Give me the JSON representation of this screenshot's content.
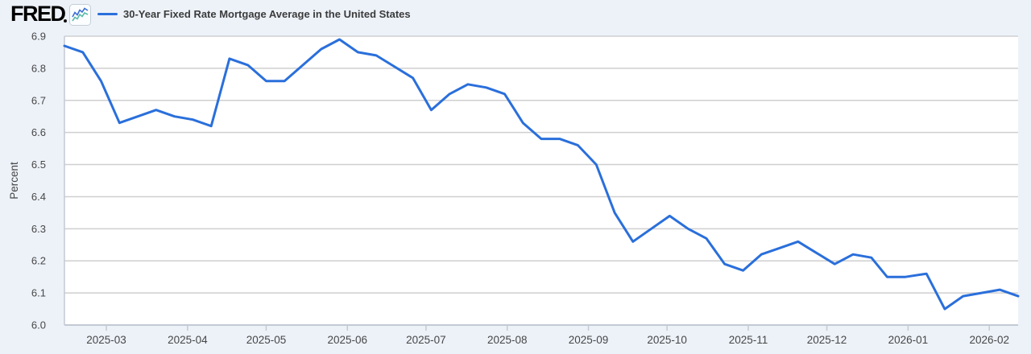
{
  "header": {
    "logo_text": "FRED",
    "title": "30-Year Fixed Rate Mortgage Average in the United States"
  },
  "colors": {
    "background": "#edf2f9",
    "plot_background": "#ffffff",
    "series_line": "#2a6fdb",
    "gridline": "#cfcfcf",
    "axis_line": "#c3cad3",
    "tick_label": "#474747",
    "title_text": "#3b3b3b",
    "icon_teal": "#5ab9a8",
    "icon_blue": "#3b6fd4"
  },
  "y_axis": {
    "title": "Percent",
    "tick_labels": [
      "6.9",
      "6.8",
      "6.7",
      "6.6",
      "6.5",
      "6.4",
      "6.3",
      "6.2",
      "6.1",
      "6.0"
    ],
    "min": 6.0,
    "max": 6.9
  },
  "x_axis": {
    "tick_labels": [
      "2025-03",
      "2025-04",
      "2025-05",
      "2025-06",
      "2025-07",
      "2025-08",
      "2025-09",
      "2025-10",
      "2025-11",
      "2025-12",
      "2026-01",
      "2026-02"
    ]
  },
  "chart_data": {
    "type": "line",
    "title": "30-Year Fixed Rate Mortgage Average in the United States",
    "ylabel": "Percent",
    "ylim": [
      6.0,
      6.9
    ],
    "grid": true,
    "legend_position": "top-left",
    "frequency": "weekly",
    "series": [
      {
        "name": "30-Year Fixed Rate Mortgage Average in the United States",
        "x": [
          "2025-02-13",
          "2025-02-20",
          "2025-02-27",
          "2025-03-06",
          "2025-03-13",
          "2025-03-20",
          "2025-03-27",
          "2025-04-03",
          "2025-04-10",
          "2025-04-17",
          "2025-04-24",
          "2025-05-01",
          "2025-05-08",
          "2025-05-15",
          "2025-05-22",
          "2025-05-29",
          "2025-06-05",
          "2025-06-12",
          "2025-06-18",
          "2025-06-26",
          "2025-07-03",
          "2025-07-10",
          "2025-07-17",
          "2025-07-24",
          "2025-07-31",
          "2025-08-07",
          "2025-08-14",
          "2025-08-21",
          "2025-08-28",
          "2025-09-04",
          "2025-09-11",
          "2025-09-18",
          "2025-09-25",
          "2025-10-02",
          "2025-10-09",
          "2025-10-16",
          "2025-10-23",
          "2025-10-30",
          "2025-11-06",
          "2025-11-13",
          "2025-11-20",
          "2025-11-26",
          "2025-12-04",
          "2025-12-11",
          "2025-12-18",
          "2025-12-24",
          "2025-12-31",
          "2026-01-08",
          "2026-01-15",
          "2026-01-22",
          "2026-01-29",
          "2026-02-05",
          "2026-02-12"
        ],
        "values": [
          6.87,
          6.85,
          6.76,
          6.63,
          6.65,
          6.67,
          6.65,
          6.64,
          6.62,
          6.83,
          6.81,
          6.76,
          6.76,
          6.81,
          6.86,
          6.89,
          6.85,
          6.84,
          6.81,
          6.77,
          6.67,
          6.72,
          6.75,
          6.74,
          6.72,
          6.63,
          6.58,
          6.58,
          6.56,
          6.5,
          6.35,
          6.26,
          6.3,
          6.34,
          6.3,
          6.27,
          6.19,
          6.17,
          6.22,
          6.24,
          6.26,
          6.23,
          6.19,
          6.22,
          6.21,
          6.15,
          6.15,
          6.16,
          6.05,
          6.09,
          6.1,
          6.11,
          6.09
        ]
      }
    ]
  }
}
